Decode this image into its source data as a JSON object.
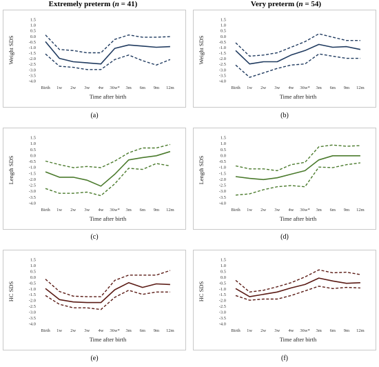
{
  "headers": {
    "left": {
      "prefix": "Extremely preterm (",
      "n": "n",
      "suffix": " = 41)"
    },
    "right": {
      "prefix": "Very preterm (",
      "n": "n",
      "suffix": " = 54)"
    }
  },
  "colors": {
    "weight": "#1f3a5f",
    "length": "#4a7a2c",
    "hc": "#5a1a14"
  },
  "chart_data": [
    {
      "type": "line",
      "panel_label": "(a)",
      "color_key": "weight",
      "categories": [
        "Birth",
        "1w",
        "2w",
        "3w",
        "4w",
        "36w*",
        "3m",
        "6m",
        "9m",
        "12m"
      ],
      "yticks": [
        "1.5",
        "1.0",
        "0.5",
        "0.0",
        "-0.5",
        "-1.0",
        "-1.5",
        "-2.0",
        "-2.5",
        "-3.0",
        "-3.5",
        "-4.0"
      ],
      "ylim": [
        -4.0,
        1.5
      ],
      "ylabel": "Weight SDS",
      "xlabel": "Time after birth",
      "series": [
        {
          "style": "solid",
          "values": [
            -0.5,
            -2.0,
            -2.3,
            -2.4,
            -2.5,
            -1.1,
            -0.8,
            -0.9,
            -1.0,
            -0.95
          ]
        },
        {
          "style": "dashed",
          "values": [
            0.1,
            -1.2,
            -1.3,
            -1.5,
            -1.5,
            -0.3,
            0.1,
            -0.1,
            -0.1,
            -0.05
          ]
        },
        {
          "style": "dashed",
          "values": [
            -1.6,
            -2.7,
            -2.8,
            -3.0,
            -3.0,
            -2.1,
            -1.7,
            -2.2,
            -2.6,
            -2.1
          ]
        }
      ]
    },
    {
      "type": "line",
      "panel_label": "(b)",
      "color_key": "weight",
      "categories": [
        "Birth",
        "1w",
        "2w",
        "3w",
        "4w",
        "36w*",
        "3m",
        "6m",
        "9m",
        "12m"
      ],
      "yticks": [
        "1.5",
        "1.0",
        "0.5",
        "0.0",
        "-0.5",
        "-1.0",
        "-1.5",
        "-2.0",
        "-2.5",
        "-3.0",
        "-3.5",
        "-4.0"
      ],
      "ylim": [
        -4.0,
        1.5
      ],
      "ylabel": "Weight SDS",
      "xlabel": "Time after birth",
      "series": [
        {
          "style": "solid",
          "values": [
            -1.3,
            -2.5,
            -2.3,
            -2.3,
            -1.7,
            -1.3,
            -0.75,
            -1.0,
            -0.95,
            -1.2
          ]
        },
        {
          "style": "dashed",
          "values": [
            -0.6,
            -1.8,
            -1.7,
            -1.5,
            -1.0,
            -0.5,
            0.2,
            -0.1,
            -0.4,
            -0.4
          ]
        },
        {
          "style": "dashed",
          "values": [
            -2.6,
            -3.7,
            -3.3,
            -2.9,
            -2.6,
            -2.5,
            -1.6,
            -1.8,
            -2.0,
            -2.0
          ]
        }
      ]
    },
    {
      "type": "line",
      "panel_label": "(c)",
      "color_key": "length",
      "categories": [
        "Birth",
        "1w",
        "2w",
        "3w",
        "4w",
        "36w*",
        "3m",
        "6m",
        "9m",
        "12m"
      ],
      "yticks": [
        "1.5",
        "1.0",
        "0.5",
        "0.0",
        "-0.5",
        "-1.0",
        "-1.5",
        "-2.0",
        "-2.5",
        "-3.0",
        "-3.5",
        "-4.0"
      ],
      "ylim": [
        -4.0,
        1.5
      ],
      "ylabel": "Length SDS",
      "xlabel": "Time after birth",
      "series": [
        {
          "style": "solid",
          "values": [
            -1.4,
            -1.85,
            -1.85,
            -2.1,
            -2.6,
            -1.6,
            -0.4,
            -0.2,
            -0.05,
            0.3
          ]
        },
        {
          "style": "dashed",
          "values": [
            -0.5,
            -0.8,
            -1.05,
            -0.95,
            -1.05,
            -0.5,
            0.2,
            0.6,
            0.6,
            0.9
          ]
        },
        {
          "style": "dashed",
          "values": [
            -2.8,
            -3.2,
            -3.2,
            -3.1,
            -3.4,
            -2.4,
            -1.1,
            -1.2,
            -0.7,
            -0.9
          ]
        }
      ]
    },
    {
      "type": "line",
      "panel_label": "(d)",
      "color_key": "length",
      "categories": [
        "Birth",
        "1w",
        "2w",
        "3w",
        "4w",
        "36w*",
        "3m",
        "6m",
        "9m",
        "12m"
      ],
      "yticks": [
        "1.5",
        "1.0",
        "0.5",
        "0.0",
        "-0.5",
        "-1.0",
        "-1.5",
        "-2.0",
        "-2.5",
        "-3.0",
        "-3.5",
        "-4.0"
      ],
      "ylim": [
        -4.0,
        1.5
      ],
      "ylabel": "Length SDS",
      "xlabel": "Time after birth",
      "series": [
        {
          "style": "solid",
          "values": [
            -1.8,
            -1.95,
            -2.05,
            -1.9,
            -1.6,
            -1.3,
            -0.4,
            -0.05,
            -0.05,
            -0.05
          ]
        },
        {
          "style": "dashed",
          "values": [
            -0.9,
            -1.15,
            -1.15,
            -1.3,
            -0.8,
            -0.6,
            0.7,
            0.85,
            0.75,
            0.8
          ]
        },
        {
          "style": "dashed",
          "values": [
            -3.35,
            -3.25,
            -2.9,
            -2.65,
            -2.55,
            -2.65,
            -1.0,
            -1.05,
            -0.8,
            -0.65
          ]
        }
      ]
    },
    {
      "type": "line",
      "panel_label": "(e)",
      "color_key": "hc",
      "categories": [
        "Birth",
        "1w",
        "2w",
        "3w",
        "4w",
        "36w*",
        "3m",
        "6m",
        "9m",
        "12m"
      ],
      "yticks": [
        "1.5",
        "1.0",
        "0.5",
        "0.0",
        "-0.5",
        "-1.0",
        "-1.5",
        "-2.0",
        "-2.5",
        "-3.0",
        "-3.5",
        "-4.0"
      ],
      "ylim": [
        -4.0,
        1.5
      ],
      "ylabel": "HC SDS",
      "xlabel": "Time after birth",
      "series": [
        {
          "style": "solid",
          "values": [
            -1.0,
            -1.95,
            -2.15,
            -2.2,
            -2.2,
            -1.1,
            -0.5,
            -0.9,
            -0.6,
            -0.65
          ]
        },
        {
          "style": "dashed",
          "values": [
            -0.2,
            -1.25,
            -1.65,
            -1.7,
            -1.7,
            -0.3,
            0.15,
            0.15,
            0.15,
            0.55
          ]
        },
        {
          "style": "dashed",
          "values": [
            -1.6,
            -2.35,
            -2.65,
            -2.65,
            -2.8,
            -1.75,
            -1.15,
            -1.5,
            -1.3,
            -1.3
          ]
        }
      ]
    },
    {
      "type": "line",
      "panel_label": "(f)",
      "color_key": "hc",
      "categories": [
        "Birth",
        "1w",
        "2w",
        "3w",
        "4w",
        "36w*",
        "3m",
        "6m",
        "9m",
        "12m"
      ],
      "yticks": [
        "1.5",
        "1.0",
        "0.5",
        "0.0",
        "-0.5",
        "-1.0",
        "-1.5",
        "-2.0",
        "-2.5",
        "-3.0",
        "-3.5",
        "-4.0"
      ],
      "ylim": [
        -4.0,
        1.5
      ],
      "ylabel": "HC SDS",
      "xlabel": "Time after birth",
      "series": [
        {
          "style": "solid",
          "values": [
            -1.0,
            -1.7,
            -1.5,
            -1.3,
            -0.95,
            -0.65,
            -0.1,
            -0.35,
            -0.55,
            -0.5
          ]
        },
        {
          "style": "dashed",
          "values": [
            -0.3,
            -1.3,
            -1.15,
            -0.85,
            -0.5,
            0.0,
            0.6,
            0.35,
            0.4,
            0.2
          ]
        },
        {
          "style": "dashed",
          "values": [
            -1.6,
            -2.0,
            -1.9,
            -1.9,
            -1.6,
            -1.2,
            -0.8,
            -1.0,
            -0.9,
            -0.95
          ]
        }
      ]
    }
  ]
}
